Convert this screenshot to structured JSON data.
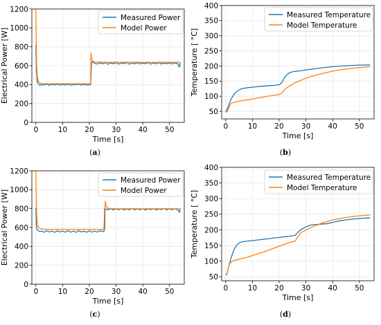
{
  "colors": {
    "measured": "#1f77b4",
    "model": "#ff7f0e",
    "grid": "#e6e6e6",
    "axis": "#000000"
  },
  "captions": [
    {
      "open": "(",
      "letter": "a",
      "close": ")"
    },
    {
      "open": "(",
      "letter": "b",
      "close": ")"
    },
    {
      "open": "(",
      "letter": "c",
      "close": ")"
    },
    {
      "open": "(",
      "letter": "d",
      "close": ")"
    }
  ],
  "chart_data": [
    {
      "type": "line",
      "xlabel": "Time [s]",
      "ylabel": "Electrical Power [W]",
      "xlim": [
        -1.5,
        55.5
      ],
      "ylim": [
        0,
        1200
      ],
      "xticks": [
        0,
        10,
        20,
        30,
        40,
        50
      ],
      "yticks": [
        0,
        200,
        400,
        600,
        800,
        1000,
        1200
      ],
      "grid": true,
      "legend": "top-right",
      "series": [
        {
          "name": "Measured Power",
          "color": "#1f77b4",
          "x": [
            0,
            0.2,
            0.5,
            1,
            1.5,
            2,
            3,
            4,
            5,
            6,
            7,
            8,
            9,
            10,
            11,
            12,
            13,
            14,
            15,
            16,
            17,
            18,
            19,
            20,
            20.5,
            20.8,
            21.2,
            22,
            23,
            24,
            25,
            26,
            27,
            28,
            29,
            30,
            31,
            32,
            33,
            34,
            35,
            36,
            37,
            38,
            39,
            40,
            41,
            42,
            43,
            44,
            45,
            46,
            47,
            48,
            49,
            50,
            51,
            52,
            53,
            53.7,
            54
          ],
          "y": [
            820,
            560,
            430,
            405,
            390,
            400,
            395,
            405,
            393,
            402,
            396,
            404,
            395,
            401,
            396,
            404,
            394,
            400,
            397,
            405,
            394,
            402,
            396,
            398,
            400,
            630,
            640,
            625,
            618,
            630,
            620,
            632,
            615,
            628,
            620,
            633,
            617,
            628,
            621,
            634,
            616,
            629,
            620,
            632,
            618,
            627,
            622,
            633,
            617,
            629,
            620,
            632,
            618,
            628,
            621,
            630,
            618,
            629,
            622,
            585,
            630
          ]
        },
        {
          "name": "Model Power",
          "color": "#ff7f0e",
          "x": [
            0,
            0.1,
            0.3,
            0.6,
            1,
            1.5,
            2,
            3,
            5,
            10,
            15,
            20,
            20.5,
            20.6,
            20.8,
            21.2,
            22,
            25,
            30,
            35,
            40,
            45,
            50,
            54
          ],
          "y": [
            1200,
            900,
            600,
            470,
            430,
            418,
            412,
            410,
            410,
            410,
            410,
            410,
            410,
            735,
            680,
            650,
            640,
            636,
            636,
            636,
            636,
            636,
            636,
            636
          ]
        }
      ]
    },
    {
      "type": "line",
      "xlabel": "Time [s]",
      "ylabel": "Temperature [ °C]",
      "xlim": [
        -1.5,
        55.5
      ],
      "ylim": [
        25,
        400
      ],
      "xticks": [
        0,
        10,
        20,
        30,
        40,
        50
      ],
      "yticks": [
        50,
        100,
        150,
        200,
        250,
        300,
        350,
        400
      ],
      "grid": true,
      "legend": "top-right",
      "series": [
        {
          "name": "Measured Temperature",
          "color": "#1f77b4",
          "x": [
            0,
            0.5,
            1,
            2,
            3,
            4,
            5,
            6,
            8,
            10,
            12,
            15,
            18,
            20,
            21,
            22,
            23,
            24,
            25,
            27,
            30,
            35,
            40,
            45,
            50,
            54
          ],
          "y": [
            50,
            55,
            68,
            90,
            105,
            115,
            121,
            125,
            128,
            130,
            132,
            134,
            136,
            138,
            145,
            162,
            172,
            178,
            181,
            183,
            187,
            193,
            198,
            201,
            203,
            204
          ]
        },
        {
          "name": "Model Temperature",
          "color": "#ff7f0e",
          "x": [
            0,
            0.5,
            1,
            1.5,
            2,
            3,
            5,
            8,
            10,
            15,
            20,
            21,
            22,
            24,
            26,
            28,
            30,
            33,
            36,
            40,
            45,
            50,
            54
          ],
          "y": [
            48,
            48,
            58,
            70,
            76,
            80,
            84,
            88,
            91,
            99,
            106,
            110,
            122,
            135,
            145,
            152,
            160,
            168,
            175,
            183,
            190,
            195,
            198
          ]
        }
      ]
    },
    {
      "type": "line",
      "xlabel": "Time [s]",
      "ylabel": "Electrical Power [W]",
      "xlim": [
        -1.5,
        55.5
      ],
      "ylim": [
        0,
        1200
      ],
      "xticks": [
        0,
        10,
        20,
        30,
        40,
        50
      ],
      "yticks": [
        0,
        200,
        400,
        600,
        800,
        1000,
        1200
      ],
      "grid": true,
      "legend": "top-right",
      "series": [
        {
          "name": "Measured Power",
          "color": "#1f77b4",
          "x": [
            0,
            0.2,
            0.5,
            1,
            1.5,
            2,
            3,
            4,
            5,
            6,
            7,
            8,
            9,
            10,
            11,
            12,
            13,
            14,
            15,
            16,
            17,
            18,
            19,
            20,
            21,
            22,
            23,
            24,
            25,
            25.5,
            25.7,
            26,
            27,
            28,
            29,
            30,
            31,
            32,
            33,
            34,
            35,
            36,
            37,
            38,
            39,
            40,
            41,
            42,
            43,
            44,
            45,
            46,
            47,
            48,
            49,
            50,
            51,
            52,
            53,
            53.7,
            54
          ],
          "y": [
            810,
            600,
            575,
            565,
            555,
            563,
            550,
            566,
            552,
            563,
            548,
            565,
            553,
            562,
            550,
            567,
            551,
            562,
            549,
            566,
            553,
            561,
            550,
            566,
            551,
            562,
            552,
            565,
            557,
            560,
            800,
            795,
            788,
            800,
            785,
            798,
            787,
            800,
            786,
            796,
            788,
            801,
            786,
            797,
            787,
            800,
            785,
            797,
            788,
            800,
            786,
            796,
            789,
            800,
            786,
            797,
            788,
            800,
            787,
            760,
            795
          ]
        },
        {
          "name": "Model Power",
          "color": "#ff7f0e",
          "x": [
            0,
            0.1,
            0.3,
            0.6,
            1,
            1.5,
            2,
            3,
            5,
            10,
            15,
            20,
            25,
            25.8,
            25.9,
            26.2,
            26.8,
            28,
            30,
            35,
            40,
            45,
            50,
            54
          ],
          "y": [
            1200,
            950,
            720,
            630,
            600,
            590,
            585,
            582,
            580,
            580,
            580,
            580,
            580,
            580,
            880,
            830,
            805,
            800,
            798,
            798,
            798,
            798,
            798,
            798
          ]
        }
      ]
    },
    {
      "type": "line",
      "xlabel": "Time [s]",
      "ylabel": "Temperature [ °C]",
      "xlim": [
        -1.5,
        55.5
      ],
      "ylim": [
        37.5,
        400
      ],
      "xticks": [
        0,
        10,
        20,
        30,
        40,
        50
      ],
      "yticks": [
        50,
        100,
        150,
        200,
        250,
        300,
        350,
        400
      ],
      "grid": true,
      "legend": "top-right",
      "series": [
        {
          "name": "Measured Temperature",
          "color": "#1f77b4",
          "x": [
            0,
            0.5,
            1,
            2,
            3,
            4,
            5,
            6,
            8,
            10,
            12,
            15,
            18,
            20,
            22,
            24,
            26,
            27,
            28,
            30,
            32,
            35,
            38,
            40,
            42,
            45,
            48,
            50,
            52,
            54
          ],
          "y": [
            55,
            60,
            80,
            110,
            135,
            150,
            158,
            162,
            164,
            166,
            168,
            171,
            174,
            176,
            178,
            180,
            183,
            192,
            200,
            210,
            216,
            218,
            220,
            224,
            228,
            232,
            235,
            236,
            238,
            238
          ]
        },
        {
          "name": "Model Temperature",
          "color": "#ff7f0e",
          "x": [
            0,
            0.5,
            1,
            1.5,
            2,
            3,
            5,
            8,
            10,
            15,
            20,
            24,
            26,
            27,
            28,
            30,
            33,
            36,
            40,
            45,
            50,
            54
          ],
          "y": [
            55,
            58,
            80,
            92,
            97,
            102,
            106,
            112,
            118,
            132,
            148,
            160,
            165,
            178,
            190,
            200,
            212,
            222,
            232,
            240,
            245,
            248
          ]
        }
      ]
    }
  ]
}
